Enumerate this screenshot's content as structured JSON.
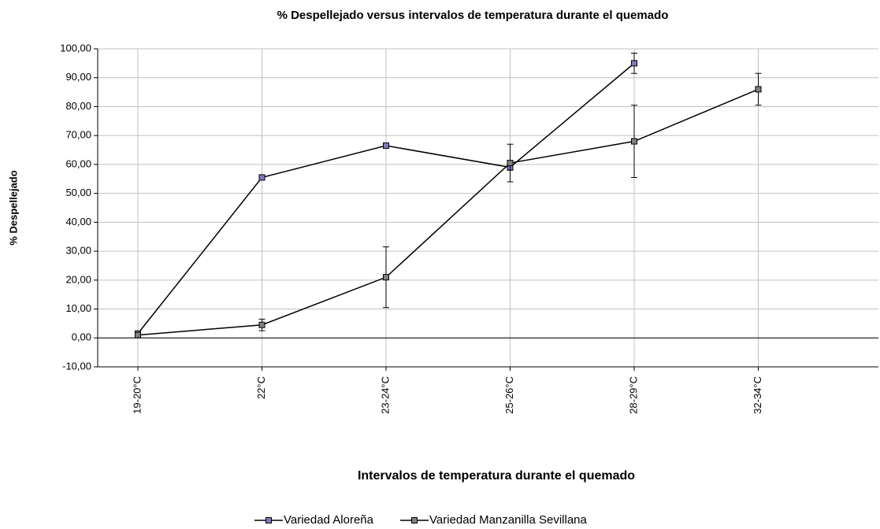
{
  "chart_data": {
    "type": "line",
    "title": "% Despellejado versus intervalos de temperatura durante el quemado",
    "x_label": "Intervalos de temperatura durante el quemado",
    "y_label": "% Despellejado",
    "categories": [
      "19-20°C",
      "22°C",
      "23-24°C",
      "25-26°C",
      "28-29°C",
      "32-34°C"
    ],
    "series": [
      {
        "name": "Variedad Aloreña",
        "color": "#7b7bc0",
        "values": [
          1.5,
          55.5,
          66.5,
          59,
          95,
          null
        ],
        "errors": [
          0.5,
          0.5,
          0.5,
          1,
          3.5,
          null
        ]
      },
      {
        "name": "Variedad Manzanilla Sevillana",
        "color": "#808080",
        "values": [
          1,
          4.5,
          21,
          60.5,
          68,
          86
        ],
        "errors": [
          0.5,
          2,
          10.5,
          6.5,
          12.5,
          5.5
        ]
      }
    ],
    "ylim": [
      -10,
      100
    ],
    "yticks": [
      {
        "value": -10,
        "label": "-10,00"
      },
      {
        "value": 0,
        "label": "0,00"
      },
      {
        "value": 10,
        "label": "10,00"
      },
      {
        "value": 20,
        "label": "20,00"
      },
      {
        "value": 30,
        "label": "30,00"
      },
      {
        "value": 40,
        "label": "40,00"
      },
      {
        "value": 50,
        "label": "50,00"
      },
      {
        "value": 60,
        "label": "60,00"
      },
      {
        "value": 70,
        "label": "70,00"
      },
      {
        "value": 80,
        "label": "80,00"
      },
      {
        "value": 90,
        "label": "90,00"
      },
      {
        "value": 100,
        "label": "100,00"
      }
    ],
    "grid": true
  }
}
